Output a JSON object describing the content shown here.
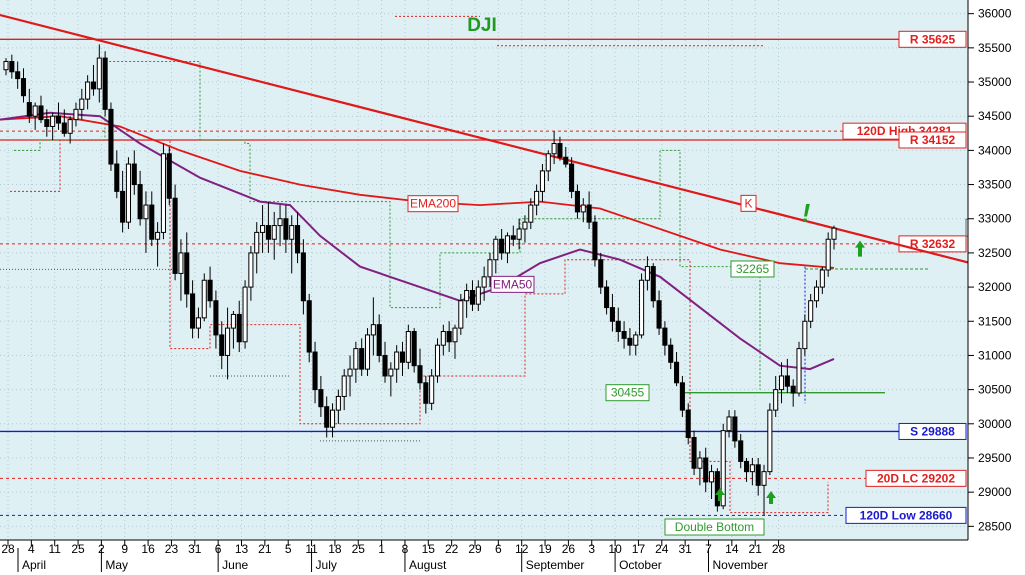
{
  "chart_data": {
    "type": "candlestick",
    "title": "DJI",
    "ylim": [
      28300,
      36200
    ],
    "y_ticks": [
      28500,
      29000,
      29500,
      30000,
      30500,
      31000,
      31500,
      32000,
      32500,
      33000,
      33500,
      34000,
      34500,
      35000,
      35500,
      36000
    ],
    "x_ticks": [
      "28",
      "4",
      "11",
      "25",
      "2",
      "9",
      "16",
      "23",
      "31",
      "6",
      "13",
      "21",
      "5",
      "11",
      "18",
      "25",
      "1",
      "8",
      "15",
      "22",
      "29",
      "6",
      "12",
      "19",
      "26",
      "3",
      "10",
      "17",
      "24",
      "31",
      "7",
      "14",
      "21",
      "28"
    ],
    "months": [
      "April",
      "May",
      "June",
      "July",
      "August",
      "September",
      "October",
      "November"
    ],
    "last_price": "32861.80",
    "grid": true,
    "levels": [
      {
        "label": "R 35625",
        "value": 35625,
        "color": "#e02020",
        "style": "solid"
      },
      {
        "label": "120D High 34281",
        "value": 34281,
        "color": "#e02020",
        "style": "dashed"
      },
      {
        "label": "R 34152",
        "value": 34152,
        "color": "#e02020",
        "style": "solid"
      },
      {
        "label": "R 32632",
        "value": 32632,
        "color": "#e02020",
        "style": "dashed"
      },
      {
        "label": "S 29888",
        "value": 29888,
        "color": "#1a1acc",
        "style": "solid"
      },
      {
        "label": "20D LC 29202",
        "value": 29202,
        "color": "#e02020",
        "style": "dashed"
      },
      {
        "label": "120D Low 28660",
        "value": 28660,
        "color": "#1a1acc",
        "style": "dashed"
      }
    ],
    "annotations": {
      "ema200": "EMA200",
      "ema50": "EMA50",
      "trendline": "K",
      "level_32265": "32265",
      "level_30455": "30455",
      "pattern": "Double Bottom",
      "alert": "!"
    },
    "ohlc": [
      [
        35180,
        35350,
        35100,
        35300
      ],
      [
        35300,
        35400,
        35050,
        35150
      ],
      [
        35150,
        35300,
        34900,
        35050
      ],
      [
        35050,
        35200,
        34700,
        34800
      ],
      [
        34700,
        34900,
        34400,
        34500
      ],
      [
        34500,
        34700,
        34300,
        34650
      ],
      [
        34650,
        34800,
        34400,
        34450
      ],
      [
        34450,
        34600,
        34200,
        34350
      ],
      [
        34350,
        34550,
        34150,
        34500
      ],
      [
        34500,
        34700,
        34300,
        34400
      ],
      [
        34400,
        34600,
        34200,
        34250
      ],
      [
        34250,
        34500,
        34100,
        34450
      ],
      [
        34450,
        34700,
        34350,
        34600
      ],
      [
        34600,
        34900,
        34450,
        34750
      ],
      [
        34750,
        35100,
        34600,
        35000
      ],
      [
        35000,
        35250,
        34800,
        34900
      ],
      [
        34900,
        35550,
        34700,
        35350
      ],
      [
        35350,
        35450,
        34500,
        34600
      ],
      [
        34600,
        34700,
        33700,
        33800
      ],
      [
        33800,
        34000,
        33300,
        33400
      ],
      [
        33400,
        33700,
        32800,
        32950
      ],
      [
        32950,
        33900,
        32850,
        33800
      ],
      [
        33800,
        34000,
        33350,
        33500
      ],
      [
        33500,
        33700,
        32900,
        33000
      ],
      [
        33000,
        33400,
        32500,
        33200
      ],
      [
        33200,
        33400,
        32600,
        32700
      ],
      [
        32700,
        32950,
        32300,
        32800
      ],
      [
        32800,
        34100,
        32700,
        33950
      ],
      [
        33950,
        34050,
        33200,
        33300
      ],
      [
        33300,
        33500,
        32100,
        32200
      ],
      [
        32200,
        32700,
        31800,
        32500
      ],
      [
        32500,
        32800,
        31700,
        31900
      ],
      [
        31900,
        32100,
        31250,
        31400
      ],
      [
        31400,
        31700,
        31250,
        31550
      ],
      [
        31550,
        32200,
        31500,
        32100
      ],
      [
        32100,
        32300,
        31700,
        31800
      ],
      [
        31800,
        31950,
        31100,
        31300
      ],
      [
        31300,
        31500,
        30800,
        31000
      ],
      [
        31000,
        31700,
        30650,
        31400
      ],
      [
        31400,
        31650,
        31100,
        31600
      ],
      [
        31600,
        31800,
        31050,
        31200
      ],
      [
        31200,
        32100,
        31100,
        32000
      ],
      [
        32000,
        32600,
        31800,
        32500
      ],
      [
        32500,
        32950,
        32200,
        32800
      ],
      [
        32800,
        33200,
        32500,
        32900
      ],
      [
        32900,
        33250,
        32500,
        32700
      ],
      [
        32700,
        33100,
        32400,
        32900
      ],
      [
        32900,
        33200,
        32600,
        33000
      ],
      [
        33000,
        33200,
        32500,
        32700
      ],
      [
        32700,
        33050,
        32200,
        32900
      ],
      [
        32900,
        33100,
        32350,
        32500
      ],
      [
        32500,
        32700,
        31600,
        31800
      ],
      [
        31800,
        31900,
        30900,
        31050
      ],
      [
        31050,
        31200,
        30300,
        30500
      ],
      [
        30500,
        30700,
        30100,
        30250
      ],
      [
        30250,
        30400,
        29800,
        29950
      ],
      [
        29950,
        30300,
        29800,
        30200
      ],
      [
        30200,
        30500,
        30000,
        30400
      ],
      [
        30400,
        30800,
        30200,
        30700
      ],
      [
        30700,
        31000,
        30400,
        30800
      ],
      [
        30800,
        31200,
        30600,
        31100
      ],
      [
        31100,
        31250,
        30700,
        30800
      ],
      [
        30800,
        31400,
        30700,
        31300
      ],
      [
        31300,
        31850,
        31000,
        31450
      ],
      [
        31450,
        31600,
        30900,
        31000
      ],
      [
        31000,
        31200,
        30600,
        30700
      ],
      [
        30700,
        30900,
        30400,
        30800
      ],
      [
        30800,
        31150,
        30600,
        31050
      ],
      [
        31050,
        31200,
        30700,
        30900
      ],
      [
        30900,
        31450,
        30800,
        31350
      ],
      [
        31350,
        31400,
        30750,
        30850
      ],
      [
        30850,
        31100,
        30500,
        30600
      ],
      [
        30600,
        30700,
        30150,
        30300
      ],
      [
        30300,
        30800,
        30200,
        30700
      ],
      [
        30700,
        31250,
        30600,
        31150
      ],
      [
        31150,
        31450,
        31000,
        31350
      ],
      [
        31350,
        31500,
        31050,
        31200
      ],
      [
        31200,
        31450,
        30950,
        31400
      ],
      [
        31400,
        31900,
        31300,
        31800
      ],
      [
        31800,
        32050,
        31550,
        31950
      ],
      [
        31950,
        32100,
        31650,
        31750
      ],
      [
        31750,
        32100,
        31650,
        32000
      ],
      [
        32000,
        32300,
        31800,
        32150
      ],
      [
        32150,
        32500,
        32000,
        32400
      ],
      [
        32400,
        32750,
        32200,
        32700
      ],
      [
        32700,
        32850,
        32400,
        32500
      ],
      [
        32500,
        32800,
        32350,
        32750
      ],
      [
        32750,
        32900,
        32600,
        32700
      ],
      [
        32700,
        33000,
        32550,
        32850
      ],
      [
        32850,
        33050,
        32650,
        32950
      ],
      [
        32950,
        33300,
        32850,
        33200
      ],
      [
        33200,
        33500,
        33050,
        33400
      ],
      [
        33400,
        33800,
        33250,
        33700
      ],
      [
        33700,
        34000,
        33550,
        33950
      ],
      [
        33950,
        34281,
        33800,
        34100
      ],
      [
        34100,
        34200,
        33850,
        33900
      ],
      [
        33900,
        34050,
        33750,
        33800
      ],
      [
        33800,
        33900,
        33300,
        33400
      ],
      [
        33400,
        33500,
        33000,
        33100
      ],
      [
        33100,
        33300,
        32950,
        33200
      ],
      [
        33200,
        33400,
        32850,
        32950
      ],
      [
        32950,
        33050,
        32300,
        32400
      ],
      [
        32400,
        32500,
        31900,
        32000
      ],
      [
        32000,
        32100,
        31600,
        31700
      ],
      [
        31700,
        31900,
        31350,
        31500
      ],
      [
        31500,
        31700,
        31200,
        31350
      ],
      [
        31350,
        31500,
        31100,
        31250
      ],
      [
        31250,
        31400,
        31000,
        31150
      ],
      [
        31150,
        31350,
        31000,
        31300
      ],
      [
        31300,
        32200,
        31250,
        32100
      ],
      [
        32100,
        32450,
        31950,
        32300
      ],
      [
        32300,
        32350,
        31700,
        31800
      ],
      [
        31800,
        31950,
        31300,
        31400
      ],
      [
        31400,
        31500,
        31000,
        31150
      ],
      [
        31150,
        31250,
        30800,
        30900
      ],
      [
        30900,
        31050,
        30550,
        30600
      ],
      [
        30600,
        30700,
        30100,
        30200
      ],
      [
        30200,
        30300,
        29700,
        29800
      ],
      [
        29800,
        29900,
        29250,
        29350
      ],
      [
        29350,
        29600,
        29100,
        29500
      ],
      [
        29500,
        29650,
        29000,
        29150
      ],
      [
        29150,
        29400,
        28900,
        29300
      ],
      [
        29300,
        29350,
        28715,
        28800
      ],
      [
        28800,
        30000,
        28750,
        29900
      ],
      [
        29900,
        30200,
        29800,
        30100
      ],
      [
        30100,
        30200,
        29650,
        29750
      ],
      [
        29750,
        29850,
        29350,
        29450
      ],
      [
        29450,
        29500,
        29150,
        29300
      ],
      [
        29300,
        29500,
        29100,
        29400
      ],
      [
        29400,
        29500,
        28950,
        29100
      ],
      [
        29100,
        29400,
        28660,
        29300
      ],
      [
        29300,
        30300,
        29250,
        30200
      ],
      [
        30200,
        30700,
        30100,
        30500
      ],
      [
        30500,
        30900,
        30300,
        30700
      ],
      [
        30700,
        30950,
        30450,
        30550
      ],
      [
        30550,
        30650,
        30250,
        30450
      ],
      [
        30450,
        31200,
        30400,
        31100
      ],
      [
        31100,
        31600,
        31000,
        31500
      ],
      [
        31500,
        31900,
        31400,
        31800
      ],
      [
        31800,
        32100,
        31700,
        32000
      ],
      [
        32000,
        32300,
        31900,
        32250
      ],
      [
        32250,
        32800,
        32150,
        32700
      ],
      [
        32700,
        32900,
        32550,
        32862
      ]
    ]
  }
}
